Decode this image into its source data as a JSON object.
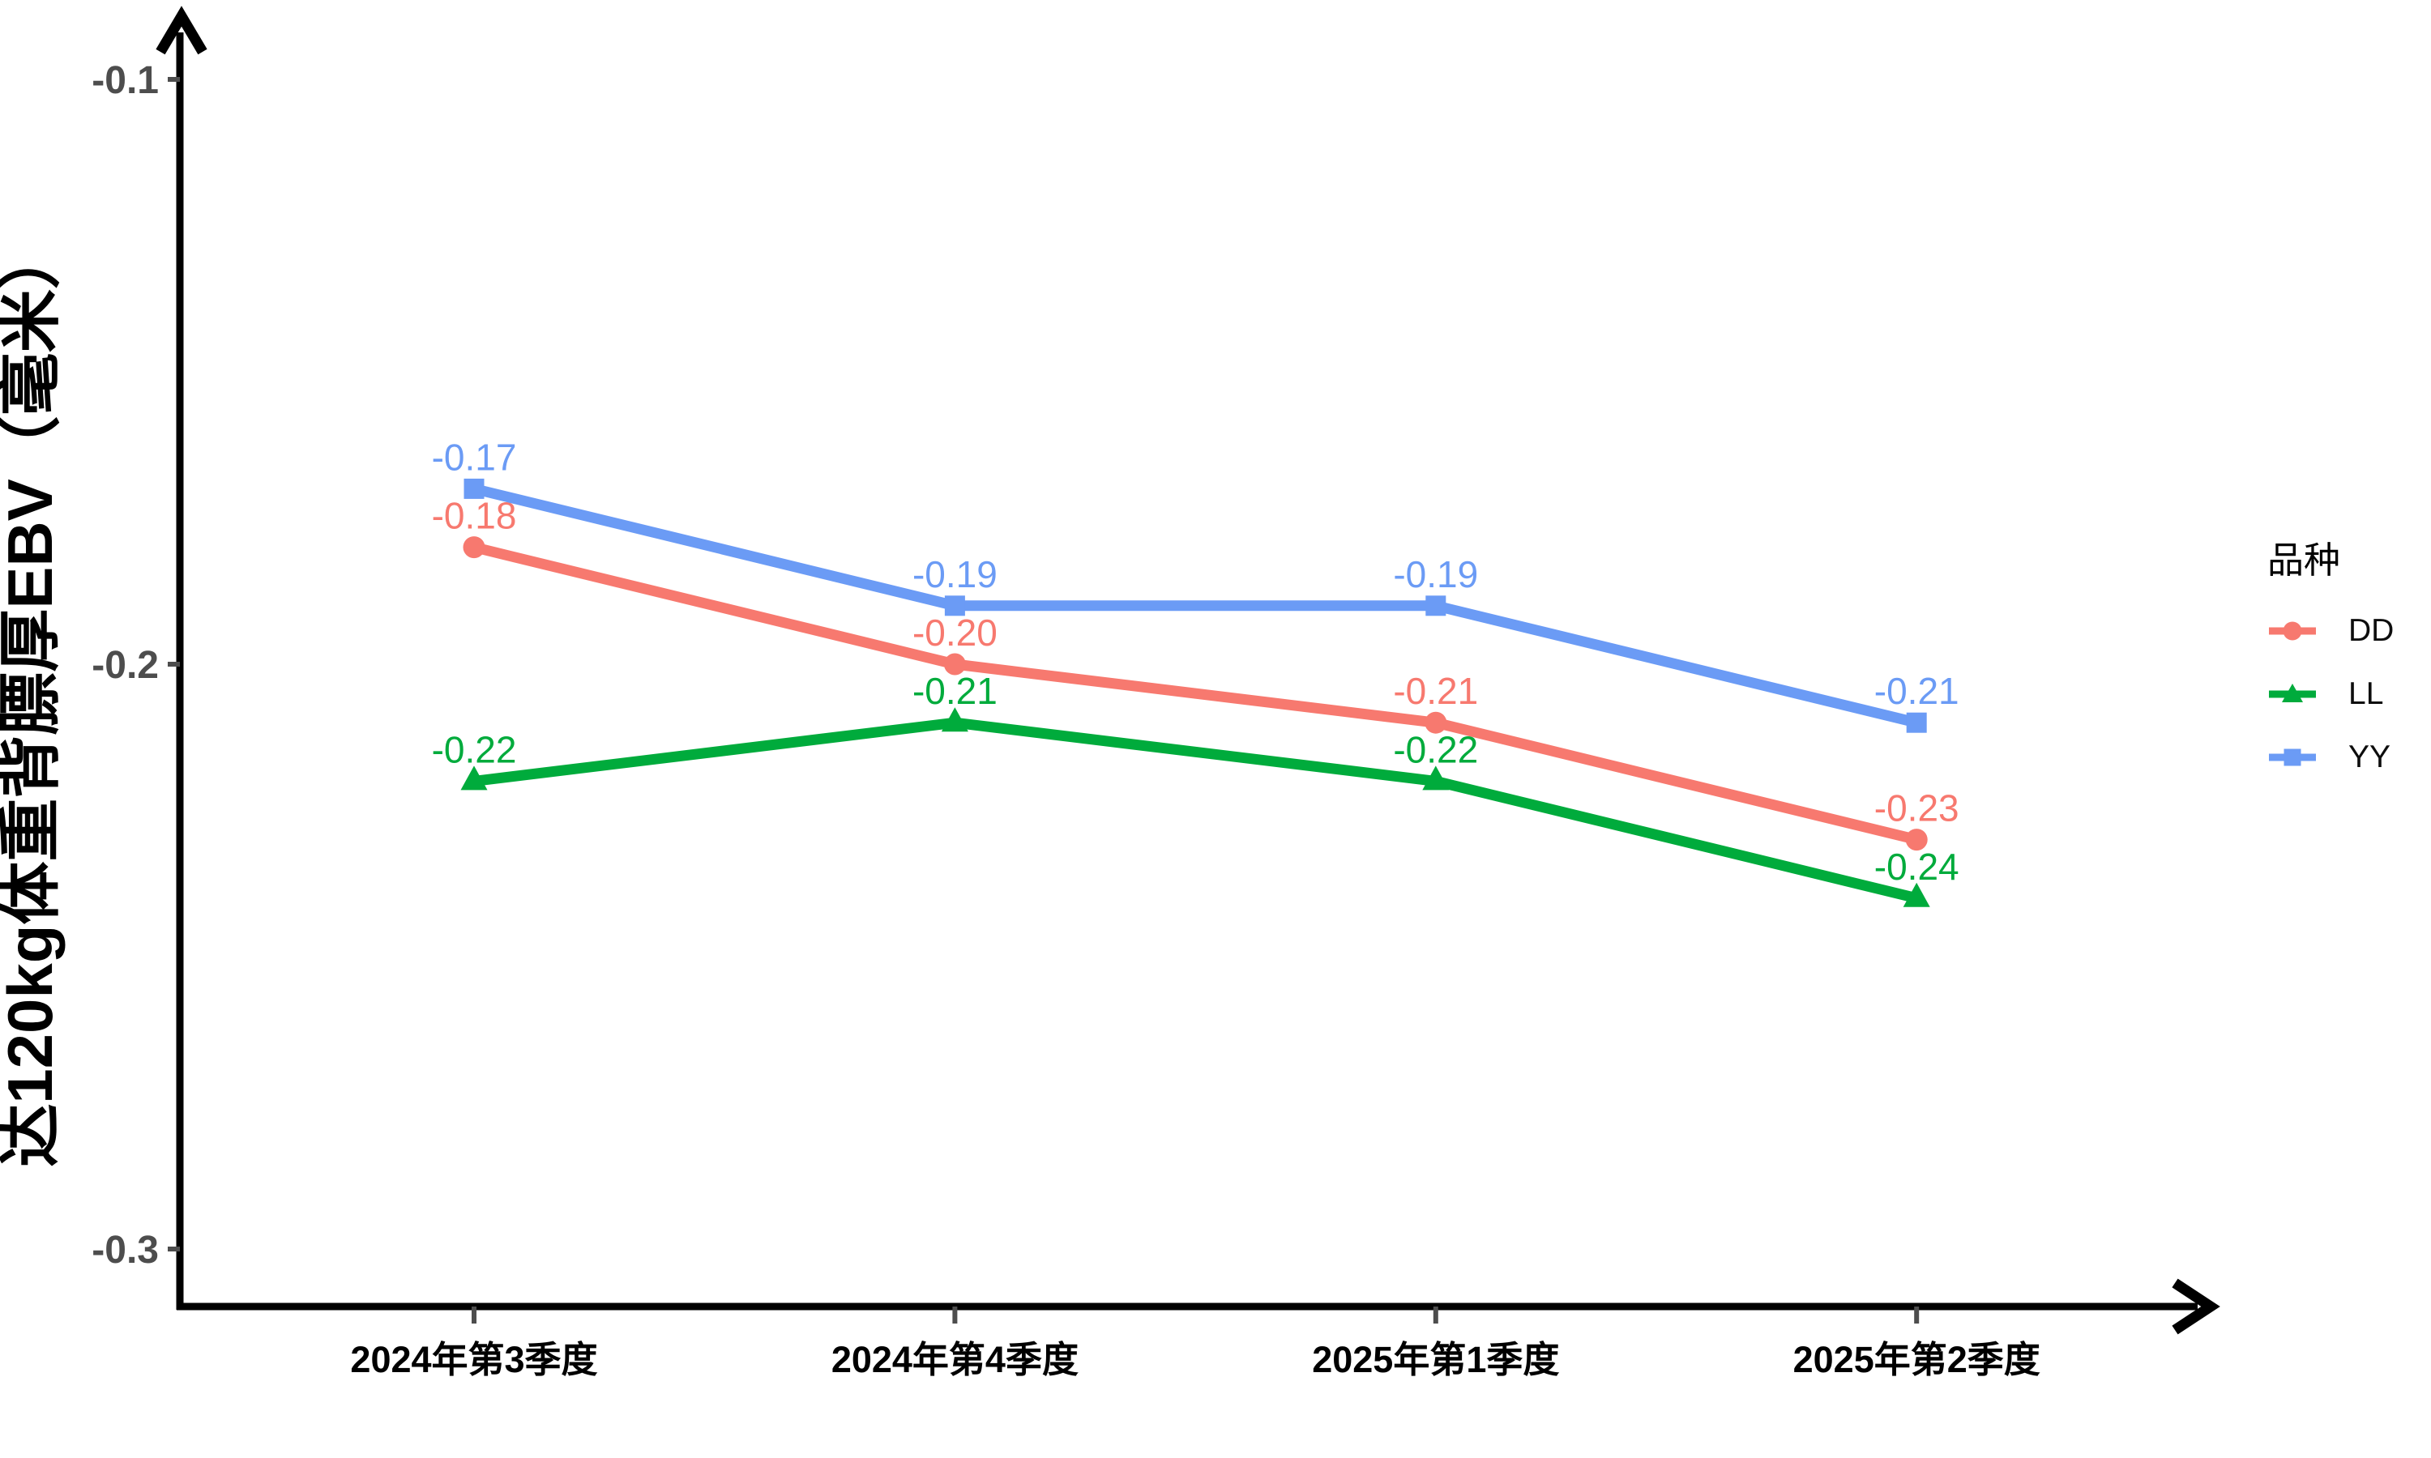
{
  "page": {
    "background": "#FFFFFF"
  },
  "chart_data": {
    "type": "line",
    "title": "",
    "categories": [
      "2024年第3季度",
      "2024年第4季度",
      "2025年第1季度",
      "2025年第2季度"
    ],
    "series": [
      {
        "name": "DD",
        "color": "#F7796F",
        "marker": "circle",
        "values": [
          -0.18,
          -0.2,
          -0.21,
          -0.23
        ],
        "point_labels": [
          "-0.18",
          "-0.20",
          "-0.21",
          "-0.23"
        ]
      },
      {
        "name": "LL",
        "color": "#00AB3C",
        "marker": "triangle",
        "values": [
          -0.22,
          -0.21,
          -0.22,
          -0.24
        ],
        "point_labels": [
          "-0.22",
          "-0.21",
          "-0.22",
          "-0.24"
        ]
      },
      {
        "name": "YY",
        "color": "#6B9BF5",
        "marker": "square",
        "values": [
          -0.17,
          -0.19,
          -0.19,
          -0.21
        ],
        "point_labels": [
          "-0.17",
          "-0.19",
          "-0.19",
          "-0.21"
        ]
      }
    ],
    "xlabel": "",
    "ylabel": "达120kg体重背膘厚EBV（毫米）",
    "y_tick_labels": [
      "-0.1",
      "-0.2",
      "-0.3"
    ],
    "y_tick_values": [
      -0.1,
      -0.2,
      -0.3
    ],
    "ylim": [
      -0.31,
      -0.09
    ],
    "grid": false,
    "legend": {
      "title": "品种",
      "position": "right"
    },
    "colors": {
      "axis": "#000000",
      "y_tick_label": "#4D4D4D",
      "x_tick_label": "#000000",
      "tick_mark": "#4D4D4D"
    }
  }
}
